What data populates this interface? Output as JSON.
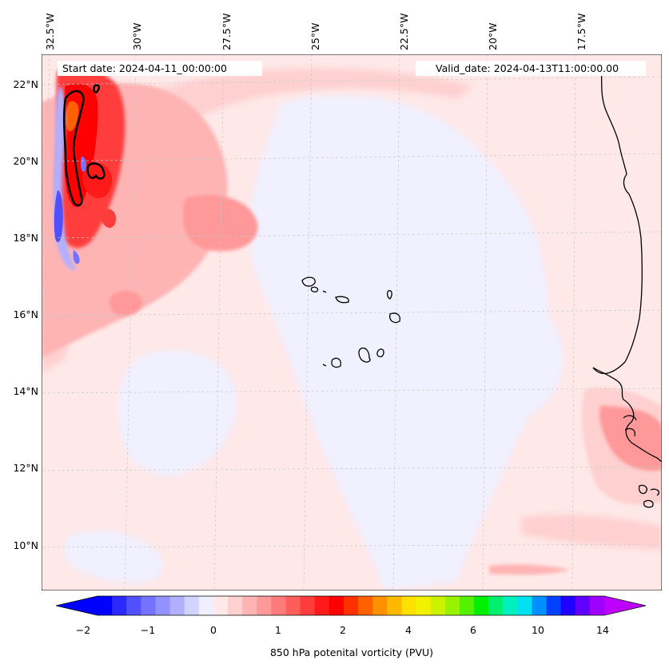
{
  "map": {
    "start_label": "Start date: 2024-04-11_00:00:00",
    "valid_label": "Valid_date: 2024-04-13T11:00:00.00",
    "lon_labels": [
      "32.5°W",
      "30°W",
      "27.5°W",
      "25°W",
      "22.5°W",
      "20°W",
      "17.5°W"
    ],
    "lat_labels": [
      "22°N",
      "20°N",
      "18°N",
      "16°N",
      "14°N",
      "12°N",
      "10°N"
    ],
    "colorbar": {
      "label": "850 hPa potenital vorticity (PVU)",
      "ticks": [
        "−2",
        "−1",
        "0",
        "1",
        "2",
        "4",
        "6",
        "10",
        "14"
      ],
      "colors": [
        "#0000ff",
        "#2a2aff",
        "#5050ff",
        "#7373ff",
        "#9191ff",
        "#b0b0ff",
        "#d3d3ff",
        "#efefff",
        "#ffe8e8",
        "#ffd0d0",
        "#ffb4b4",
        "#ff9898",
        "#ff7a7a",
        "#ff5c5c",
        "#ff3c3c",
        "#ff1a1a",
        "#ff0000",
        "#ff3000",
        "#ff6000",
        "#ff9000",
        "#ffb800",
        "#ffe000",
        "#f2f200",
        "#ccf200",
        "#99f200",
        "#55f200",
        "#00f000",
        "#00f070",
        "#00f0c0",
        "#00e0f0",
        "#0090ff",
        "#0040ff",
        "#2000ff",
        "#6000ff",
        "#a000ff"
      ],
      "under_color": "#0000ff",
      "over_color": "#c000ff"
    }
  }
}
